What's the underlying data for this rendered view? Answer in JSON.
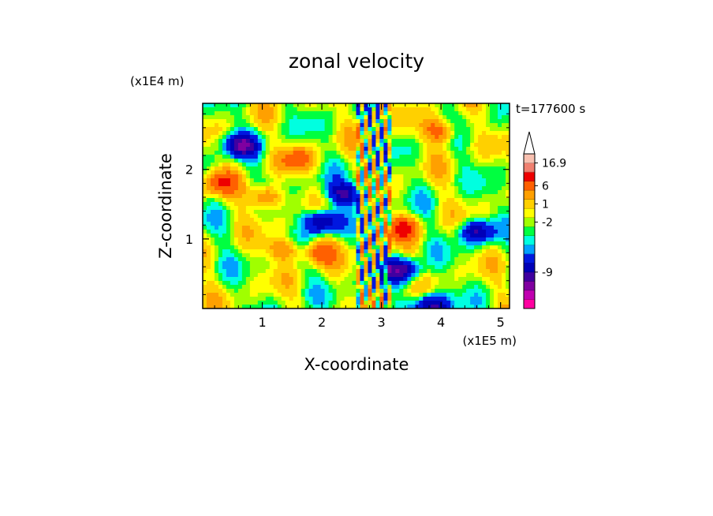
{
  "chart_data": {
    "type": "heatmap",
    "title": "zonal velocity",
    "xlabel": "X-coordinate",
    "ylabel": "Z-coordinate",
    "x_unit": "(x1E5 m)",
    "y_unit": "(x1E4 m)",
    "time_label": "t=177600 s",
    "xlim": [
      0,
      5.15
    ],
    "ylim": [
      0,
      2.95
    ],
    "x_ticks": [
      1,
      2,
      3,
      4,
      5
    ],
    "y_ticks": [
      1,
      2
    ],
    "colorbar": {
      "levels": [
        {
          "color": "#ff00a0"
        },
        {
          "color": "#c000b0"
        },
        {
          "color": "#8000a0"
        },
        {
          "color": "#4000a0"
        },
        {
          "color": "#0000b8"
        },
        {
          "color": "#0018e0"
        },
        {
          "color": "#00a0ff"
        },
        {
          "color": "#00ffe0"
        },
        {
          "color": "#00ff40"
        },
        {
          "color": "#a0ff00"
        },
        {
          "color": "#ffff00"
        },
        {
          "color": "#ffd000"
        },
        {
          "color": "#ffa000"
        },
        {
          "color": "#ff6000"
        },
        {
          "color": "#ee0000"
        },
        {
          "color": "#f08070"
        },
        {
          "color": "#f8c0b0"
        }
      ],
      "labels": [
        {
          "text": "16.9",
          "pos": 16
        },
        {
          "text": "6",
          "pos": 13.5
        },
        {
          "text": "1",
          "pos": 11.5
        },
        {
          "text": "-2",
          "pos": 9.5
        },
        {
          "text": "-9",
          "pos": 4
        }
      ],
      "extend": "max"
    },
    "field_features": [
      {
        "x": 1.95,
        "z": 0.8,
        "v": 5
      },
      {
        "x": 0.65,
        "z": 2.35,
        "v": -8
      },
      {
        "x": 2.0,
        "z": 1.25,
        "v": -9
      },
      {
        "x": 1.35,
        "z": 0.85,
        "v": 4
      },
      {
        "x": 3.35,
        "z": 1.15,
        "v": 6
      },
      {
        "x": 4.0,
        "z": 2.55,
        "v": 5
      },
      {
        "x": 3.35,
        "z": 0.55,
        "v": -8
      },
      {
        "x": 0.3,
        "z": 1.8,
        "v": 5
      },
      {
        "x": 1.05,
        "z": 1.6,
        "v": 5
      },
      {
        "x": 4.6,
        "z": 1.1,
        "v": -7
      },
      {
        "x": 3.85,
        "z": 0.05,
        "v": -8
      },
      {
        "x": 2.4,
        "z": 1.65,
        "v": -7
      },
      {
        "x": 1.6,
        "z": 2.15,
        "v": 4
      }
    ],
    "grid": false,
    "legend": "right"
  }
}
